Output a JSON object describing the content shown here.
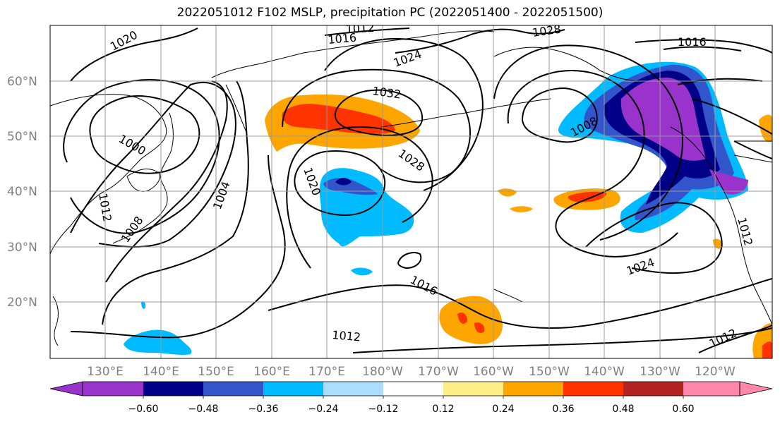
{
  "title": "2022051012 F102 MSLP, precipitation PC (2022051400 - 2022051500)",
  "lat_labels": [
    "60°N",
    "50°N",
    "40°N",
    "30°N",
    "20°N"
  ],
  "lon_labels": [
    "130°E",
    "140°E",
    "150°E",
    "160°E",
    "170°E",
    "180°W",
    "170°W",
    "160°W",
    "150°W",
    "140°W",
    "130°W",
    "120°W"
  ],
  "contour_labels": [
    "1020",
    "1016",
    "1012",
    "1024",
    "1028",
    "1016",
    "1032",
    "1000",
    "1008",
    "1028",
    "1020",
    "1004",
    "1012",
    "1008",
    "1016",
    "1012",
    "1024",
    "1012",
    "1012"
  ],
  "colorbar": {
    "ticks": [
      "−0.60",
      "−0.48",
      "−0.36",
      "−0.24",
      "−0.12",
      "0.12",
      "0.24",
      "0.36",
      "0.48",
      "0.60"
    ],
    "colors": [
      "#9933cc",
      "#000088",
      "#3355cc",
      "#00bbff",
      "#aaddff",
      "#ffffff",
      "#ffee88",
      "#ffa500",
      "#ff3300",
      "#b22222",
      "#ff88aa"
    ]
  }
}
